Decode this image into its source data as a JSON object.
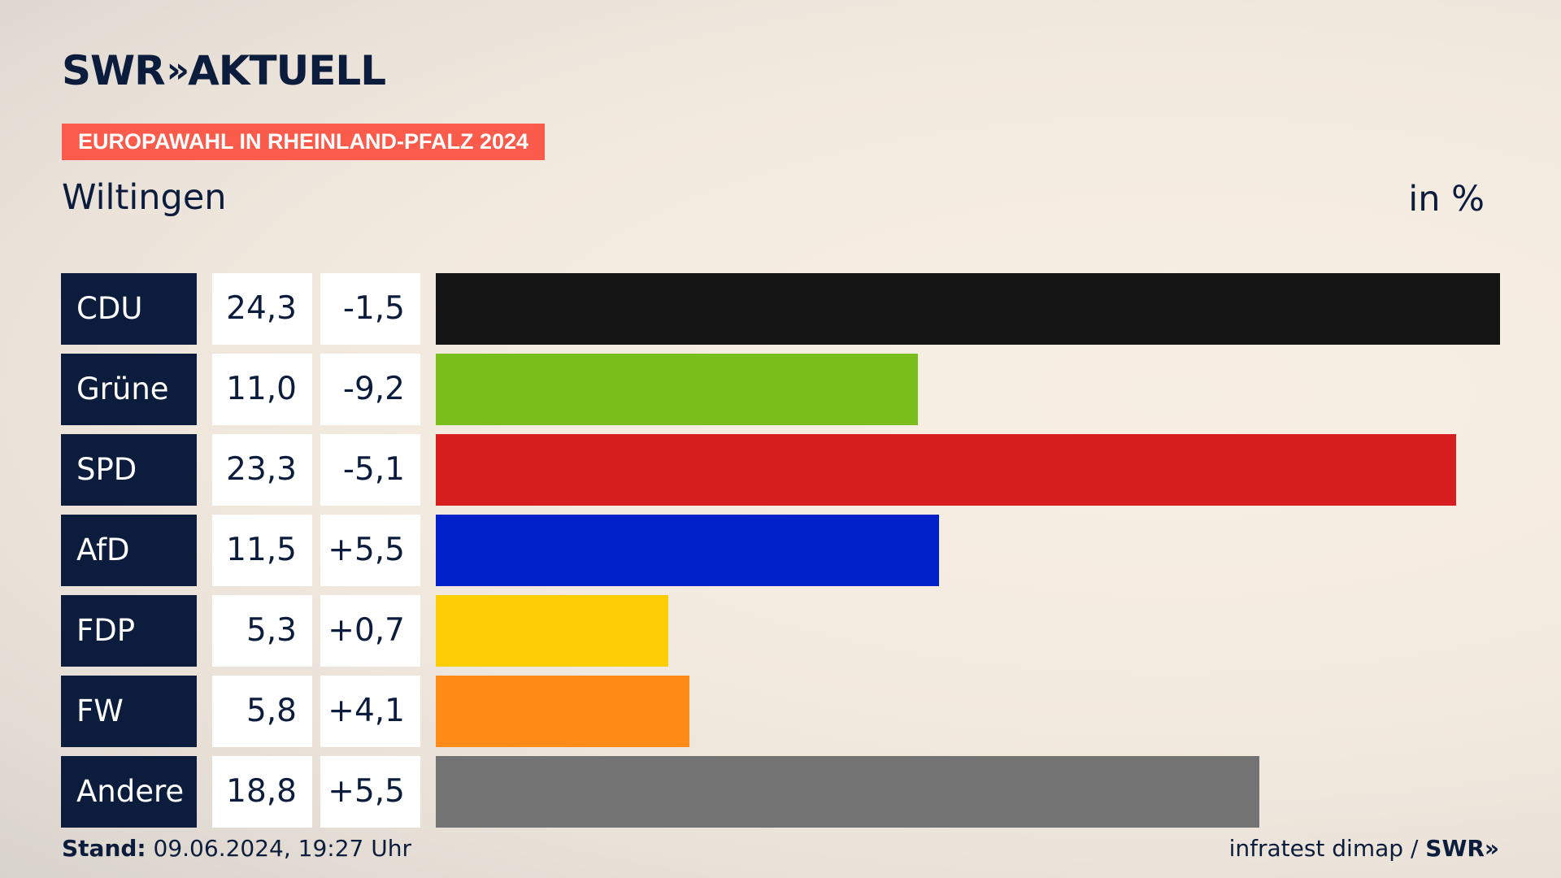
{
  "brand": {
    "name": "SWR",
    "chevrons": "»",
    "suffix": "AKTUELL"
  },
  "tag": "EUROPAWAHL IN RHEINLAND-PFALZ 2024",
  "location": "Wiltingen",
  "unit": "in %",
  "footer": {
    "stand_label": "Stand:",
    "stand_value": "09.06.2024, 19:27 Uhr",
    "source": "infratest dimap /",
    "source_brand": "SWR»"
  },
  "chart_data": {
    "type": "bar",
    "orientation": "horizontal",
    "categories": [
      "CDU",
      "Grüne",
      "SPD",
      "AfD",
      "FDP",
      "FW",
      "Andere"
    ],
    "values": [
      24.3,
      11.0,
      23.3,
      11.5,
      5.3,
      5.8,
      18.8
    ],
    "value_labels": [
      "24,3",
      "11,0",
      "23,3",
      "11,5",
      "5,3",
      "5,8",
      "18,8"
    ],
    "diff_labels": [
      "-1,5",
      "-9,2",
      "-5,1",
      "+5,5",
      "+0,7",
      "+4,1",
      "+5,5"
    ],
    "colors": [
      "#141414",
      "#7abe1c",
      "#d71f1f",
      "#0021c9",
      "#ffcd06",
      "#ff8c16",
      "#737373"
    ],
    "xlim": [
      0,
      24.3
    ]
  }
}
